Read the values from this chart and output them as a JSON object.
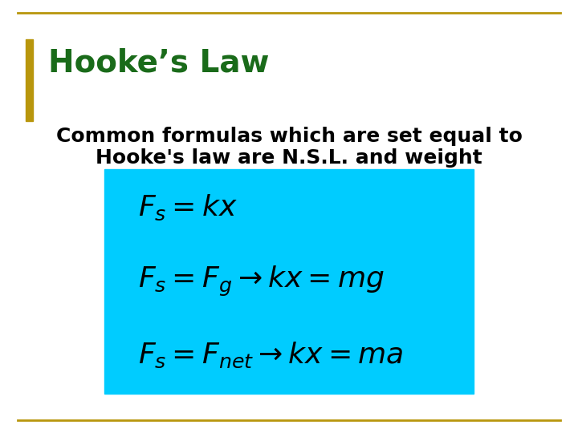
{
  "title": "Hooke’s Law",
  "title_color": "#1a6b1a",
  "title_fontsize": 28,
  "body_text_line1": "Common formulas which are set equal to",
  "body_text_line2": "Hooke's law are N.S.L. and weight",
  "body_fontsize": 18,
  "body_color": "#000000",
  "bg_color": "#ffffff",
  "box_color": "#00ccff",
  "border_color": "#b8960c",
  "formula1": "$F_s = kx$",
  "formula2": "$F_s = F_g \\\\rightarrow kx = mg$",
  "formula3": "$F_s = F_{net} \\\\rightarrow kx = ma$",
  "formula_fontsize": 26,
  "formula_color": "#000000",
  "left_bar_color": "#b8960c"
}
